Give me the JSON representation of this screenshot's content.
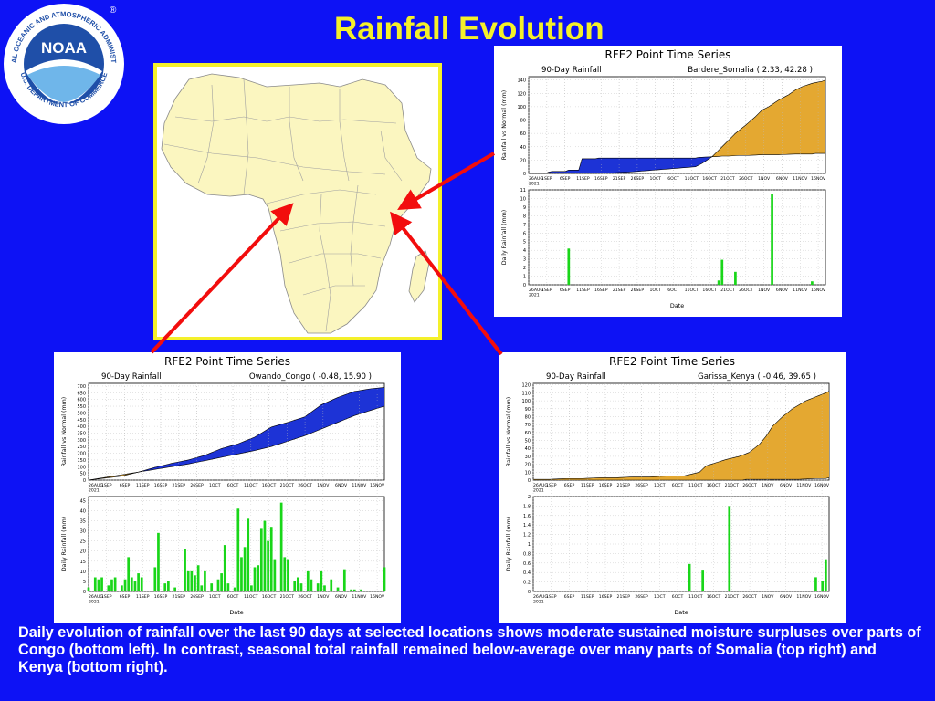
{
  "slide": {
    "title": "Rainfall Evolution",
    "caption": "Daily evolution of rainfall over the last 90 days at selected locations shows moderate sustained moisture surpluses over parts of Congo (bottom left). In contrast, seasonal total rainfall remained below-average over many parts of Somalia (top right) and Kenya (bottom right).",
    "logo": {
      "name": "NOAA",
      "ring_text": "NATIONAL OCEANIC AND ATMOSPHERIC ADMINISTRATION",
      "bottom_text": "U.S. DEPARTMENT OF COMMERCE",
      "trademark": "®"
    }
  },
  "colors": {
    "background": "#0d12f5",
    "title": "#f4f02a",
    "map_border": "#f4f02a",
    "map_land": "#fbf6c0",
    "surplus": "#1d33d6",
    "deficit": "#e4a831",
    "daily_bar": "#19d619",
    "arrow": "#f20d0d"
  },
  "chart_data": [
    {
      "id": "tr",
      "type": "area",
      "title": "RFE2 Point Time Series",
      "subtitle_left": "90-Day Rainfall",
      "subtitle_right": "Bardere_Somalia ( 2.33, 42.28 )",
      "top": {
        "ylabel": "Rainfall vs Normal (mm)",
        "ylim": [
          0,
          145
        ],
        "yticks": [
          0,
          20,
          40,
          60,
          80,
          100,
          120,
          140
        ],
        "series": [
          {
            "name": "Observed",
            "x": [
              0,
              5,
              6,
              7,
              10,
              11,
              12,
              14,
              15,
              16,
              20,
              21,
              30,
              40,
              45,
              50,
              51,
              55,
              56,
              58,
              60,
              63,
              65,
              66,
              70,
              75,
              80,
              85,
              86,
              89
            ],
            "values": [
              0,
              0,
              2,
              3,
              3,
              3,
              5,
              5,
              5,
              22,
              22,
              23,
              23,
              23,
              23,
              23,
              24,
              25,
              25,
              26,
              26,
              27,
              27,
              27,
              28,
              28,
              29,
              29,
              30,
              30
            ]
          },
          {
            "name": "Normal",
            "x": [
              0,
              5,
              10,
              15,
              20,
              25,
              30,
              35,
              40,
              45,
              50,
              52,
              55,
              58,
              60,
              62,
              65,
              68,
              70,
              72,
              75,
              78,
              80,
              82,
              85,
              88,
              89
            ],
            "values": [
              0,
              0,
              0,
              0,
              0,
              1,
              2,
              4,
              6,
              8,
              10,
              15,
              25,
              40,
              50,
              60,
              72,
              85,
              95,
              100,
              110,
              118,
              125,
              130,
              135,
              138,
              140
            ]
          }
        ]
      },
      "bottom": {
        "ylabel": "Daily Rainfall (mm)",
        "ylim": [
          0,
          11
        ],
        "yticks": [
          0,
          1,
          2,
          3,
          4,
          5,
          6,
          7,
          8,
          9,
          10,
          11
        ],
        "bars": [
          {
            "x": 12,
            "v": 4.2
          },
          {
            "x": 57,
            "v": 0.5
          },
          {
            "x": 58,
            "v": 2.9
          },
          {
            "x": 62,
            "v": 1.5
          },
          {
            "x": 73,
            "v": 10.5
          },
          {
            "x": 85,
            "v": 0.4
          }
        ]
      },
      "xlabel": "Date",
      "xticks": [
        "26AUG\n2021",
        "1SEP",
        "6SEP",
        "11SEP",
        "16SEP",
        "21SEP",
        "26SEP",
        "1OCT",
        "6OCT",
        "11OCT",
        "16OCT",
        "21OCT",
        "26OCT",
        "1NOV",
        "6NOV",
        "11NOV",
        "16NOV"
      ]
    },
    {
      "id": "bl",
      "type": "area",
      "title": "RFE2 Point Time Series",
      "subtitle_left": "90-Day Rainfall",
      "subtitle_right": "Owando_Congo ( -0.48, 15.90 )",
      "top": {
        "ylabel": "Rainfall vs Normal (mm)",
        "ylim": [
          0,
          720
        ],
        "yticks": [
          0,
          50,
          100,
          150,
          200,
          250,
          300,
          350,
          400,
          450,
          500,
          550,
          600,
          650,
          700
        ],
        "series": [
          {
            "name": "Observed",
            "x": [
              0,
              5,
              10,
              15,
              20,
              25,
              30,
              35,
              40,
              45,
              50,
              55,
              60,
              65,
              70,
              75,
              80,
              85,
              89
            ],
            "values": [
              0,
              15,
              30,
              60,
              95,
              125,
              150,
              185,
              235,
              270,
              320,
              395,
              430,
              470,
              560,
              615,
              660,
              680,
              690
            ]
          },
          {
            "name": "Normal",
            "x": [
              0,
              5,
              10,
              15,
              20,
              25,
              30,
              35,
              40,
              45,
              50,
              55,
              60,
              65,
              70,
              75,
              80,
              85,
              89
            ],
            "values": [
              0,
              20,
              40,
              60,
              80,
              100,
              120,
              145,
              170,
              195,
              220,
              250,
              290,
              330,
              380,
              430,
              480,
              520,
              550
            ]
          }
        ]
      },
      "bottom": {
        "ylabel": "Daily Rainfall (mm)",
        "ylim": [
          0,
          47
        ],
        "yticks": [
          0,
          5,
          10,
          15,
          20,
          25,
          30,
          35,
          40,
          45
        ],
        "bars": [
          {
            "x": 0,
            "v": 2
          },
          {
            "x": 2,
            "v": 7
          },
          {
            "x": 3,
            "v": 6
          },
          {
            "x": 4,
            "v": 7
          },
          {
            "x": 6,
            "v": 3
          },
          {
            "x": 7,
            "v": 6
          },
          {
            "x": 8,
            "v": 7
          },
          {
            "x": 10,
            "v": 3
          },
          {
            "x": 11,
            "v": 6
          },
          {
            "x": 12,
            "v": 17
          },
          {
            "x": 13,
            "v": 7
          },
          {
            "x": 14,
            "v": 5
          },
          {
            "x": 15,
            "v": 9
          },
          {
            "x": 16,
            "v": 7
          },
          {
            "x": 20,
            "v": 12
          },
          {
            "x": 21,
            "v": 29
          },
          {
            "x": 23,
            "v": 4
          },
          {
            "x": 24,
            "v": 5
          },
          {
            "x": 26,
            "v": 2
          },
          {
            "x": 29,
            "v": 21
          },
          {
            "x": 30,
            "v": 10
          },
          {
            "x": 31,
            "v": 10
          },
          {
            "x": 32,
            "v": 8
          },
          {
            "x": 33,
            "v": 13
          },
          {
            "x": 34,
            "v": 3
          },
          {
            "x": 35,
            "v": 10
          },
          {
            "x": 37,
            "v": 4
          },
          {
            "x": 39,
            "v": 6
          },
          {
            "x": 40,
            "v": 9
          },
          {
            "x": 41,
            "v": 23
          },
          {
            "x": 42,
            "v": 4
          },
          {
            "x": 44,
            "v": 2
          },
          {
            "x": 45,
            "v": 41
          },
          {
            "x": 46,
            "v": 17
          },
          {
            "x": 47,
            "v": 22
          },
          {
            "x": 48,
            "v": 36
          },
          {
            "x": 49,
            "v": 3
          },
          {
            "x": 50,
            "v": 12
          },
          {
            "x": 51,
            "v": 13
          },
          {
            "x": 52,
            "v": 31
          },
          {
            "x": 53,
            "v": 35
          },
          {
            "x": 54,
            "v": 25
          },
          {
            "x": 55,
            "v": 32
          },
          {
            "x": 56,
            "v": 16
          },
          {
            "x": 58,
            "v": 44
          },
          {
            "x": 59,
            "v": 17
          },
          {
            "x": 60,
            "v": 16
          },
          {
            "x": 62,
            "v": 5
          },
          {
            "x": 63,
            "v": 7
          },
          {
            "x": 64,
            "v": 4
          },
          {
            "x": 66,
            "v": 10
          },
          {
            "x": 67,
            "v": 6
          },
          {
            "x": 69,
            "v": 4
          },
          {
            "x": 70,
            "v": 10
          },
          {
            "x": 71,
            "v": 3
          },
          {
            "x": 73,
            "v": 6
          },
          {
            "x": 75,
            "v": 2
          },
          {
            "x": 77,
            "v": 11
          },
          {
            "x": 79,
            "v": 1
          },
          {
            "x": 80,
            "v": 1
          },
          {
            "x": 82,
            "v": 1
          },
          {
            "x": 89,
            "v": 12
          }
        ]
      },
      "xlabel": "Date",
      "xticks": [
        "26AUG\n2021",
        "1SEP",
        "6SEP",
        "11SEP",
        "16SEP",
        "21SEP",
        "26SEP",
        "1OCT",
        "6OCT",
        "11OCT",
        "16OCT",
        "21OCT",
        "26OCT",
        "1NOV",
        "6NOV",
        "11NOV",
        "16NOV"
      ]
    },
    {
      "id": "br",
      "type": "area",
      "title": "RFE2 Point Time Series",
      "subtitle_left": "90-Day Rainfall",
      "subtitle_right": "Garissa_Kenya ( -0.46, 39.65 )",
      "top": {
        "ylabel": "Rainfall vs Normal (mm)",
        "ylim": [
          0,
          122
        ],
        "yticks": [
          0,
          10,
          20,
          30,
          40,
          50,
          60,
          70,
          80,
          90,
          100,
          110,
          120
        ],
        "series": [
          {
            "name": "Observed",
            "x": [
              0,
              10,
              20,
              30,
              40,
              45,
              50,
              51,
              55,
              60,
              63,
              64,
              65,
              66,
              70,
              75,
              80,
              85,
              88,
              89
            ],
            "values": [
              0,
              0,
              0,
              0,
              0,
              0,
              0,
              0,
              0,
              0,
              0,
              1,
              1,
              1,
              1,
              1,
              1,
              2,
              2,
              3
            ]
          },
          {
            "name": "Normal",
            "x": [
              0,
              5,
              10,
              15,
              20,
              25,
              30,
              35,
              40,
              45,
              48,
              50,
              52,
              55,
              58,
              60,
              62,
              65,
              68,
              70,
              72,
              75,
              78,
              80,
              82,
              85,
              88,
              89
            ],
            "values": [
              1,
              1,
              2,
              2,
              3,
              3,
              4,
              4,
              5,
              5,
              8,
              10,
              18,
              22,
              26,
              28,
              30,
              35,
              45,
              55,
              68,
              80,
              90,
              95,
              100,
              105,
              110,
              112
            ]
          }
        ]
      },
      "bottom": {
        "ylabel": "Daily Rainfall (mm)",
        "ylim": [
          0,
          2
        ],
        "yticks": [
          0,
          0.2,
          0.4,
          0.6,
          0.8,
          1,
          1.2,
          1.4,
          1.6,
          1.8,
          2
        ],
        "bars": [
          {
            "x": 47,
            "v": 0.58
          },
          {
            "x": 51,
            "v": 0.44
          },
          {
            "x": 59,
            "v": 1.8
          },
          {
            "x": 85,
            "v": 0.3
          },
          {
            "x": 87,
            "v": 0.22
          },
          {
            "x": 88,
            "v": 0.68
          }
        ]
      },
      "xlabel": "Date",
      "xticks": [
        "26AUG\n2021",
        "1SEP",
        "6SEP",
        "11SEP",
        "16SEP",
        "21SEP",
        "26SEP",
        "1OCT",
        "6OCT",
        "11OCT",
        "16OCT",
        "21OCT",
        "26OCT",
        "1NOV",
        "6NOV",
        "11NOV",
        "16NOV"
      ]
    }
  ]
}
